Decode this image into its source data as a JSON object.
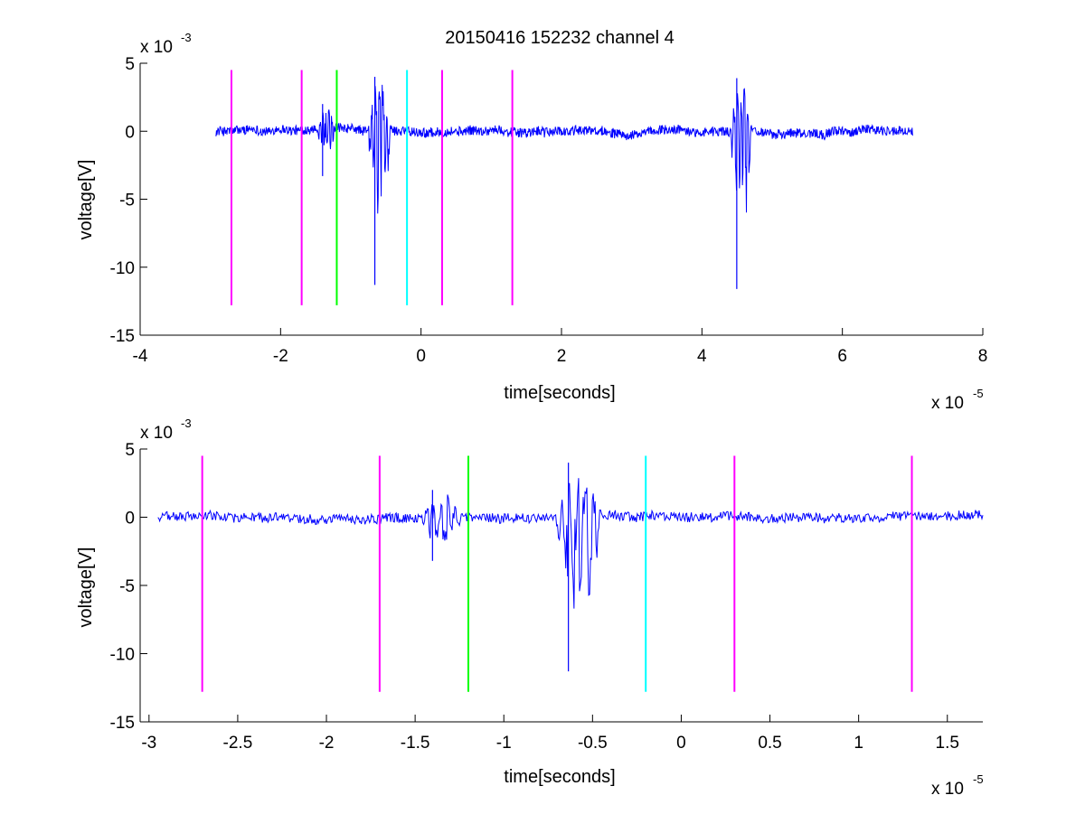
{
  "figure": {
    "title": "20150416 152232 channel 4",
    "background": "#ffffff"
  },
  "colors": {
    "signal": "#0000ff",
    "magenta": "#ff00ff",
    "green": "#00ff00",
    "cyan": "#00ffff",
    "axis": "#000000"
  },
  "chart_data": [
    {
      "type": "line",
      "title": "20150416 152232 channel 4",
      "xlabel": "time[seconds]",
      "ylabel": "voltage[V]",
      "x_exponent_label": "x 10",
      "x_exponent_power": "-5",
      "y_exponent_label": "x 10",
      "y_exponent_power": "-3",
      "xlim": [
        -4,
        8
      ],
      "ylim": [
        -15,
        5
      ],
      "xticks": [
        -4,
        -2,
        0,
        2,
        4,
        6,
        8
      ],
      "xtick_labels": [
        "-4",
        "-2",
        "0",
        "2",
        "4",
        "6",
        "8"
      ],
      "yticks": [
        -15,
        -10,
        -5,
        0,
        5
      ],
      "ytick_labels": [
        "-15",
        "-10",
        "-5",
        "0",
        "5"
      ],
      "grid": false,
      "series": [
        {
          "color": "#0000ff",
          "x_range": [
            -2.92,
            7.0
          ],
          "baseline": 0,
          "noise_amplitude": 0.35,
          "bursts": [
            {
              "x_start": -1.48,
              "x_end": -1.22,
              "min": -3.3,
              "max": 2.0
            },
            {
              "x_start": -0.76,
              "x_end": -0.42,
              "min": -11.3,
              "max": 4.0
            },
            {
              "x_start": 4.4,
              "x_end": 4.72,
              "min": -11.6,
              "max": 3.9
            }
          ]
        }
      ],
      "markers": [
        {
          "x": -2.7,
          "color": "#ff00ff",
          "y_from": -12.8,
          "y_to": 4.5
        },
        {
          "x": -1.7,
          "color": "#ff00ff",
          "y_from": -12.8,
          "y_to": 4.5
        },
        {
          "x": -1.2,
          "color": "#00ff00",
          "y_from": -12.8,
          "y_to": 4.5
        },
        {
          "x": -0.2,
          "color": "#00ffff",
          "y_from": -12.8,
          "y_to": 4.5
        },
        {
          "x": 0.3,
          "color": "#ff00ff",
          "y_from": -12.8,
          "y_to": 4.5
        },
        {
          "x": 1.3,
          "color": "#ff00ff",
          "y_from": -12.8,
          "y_to": 4.5
        }
      ]
    },
    {
      "type": "line",
      "title": "",
      "xlabel": "time[seconds]",
      "ylabel": "voltage[V]",
      "x_exponent_label": "x 10",
      "x_exponent_power": "-5",
      "y_exponent_label": "x 10",
      "y_exponent_power": "-3",
      "xlim": [
        -3.05,
        1.7
      ],
      "ylim": [
        -15,
        5
      ],
      "xticks": [
        -3,
        -2.5,
        -2,
        -1.5,
        -1,
        -0.5,
        0,
        0.5,
        1,
        1.5
      ],
      "xtick_labels": [
        "-3",
        "-2.5",
        "-2",
        "-1.5",
        "-1",
        "-0.5",
        "0",
        "0.5",
        "1",
        "1.5"
      ],
      "yticks": [
        -15,
        -10,
        -5,
        0,
        5
      ],
      "ytick_labels": [
        "-15",
        "-10",
        "-5",
        "0",
        "5"
      ],
      "grid": false,
      "series": [
        {
          "color": "#0000ff",
          "x_range": [
            -2.95,
            1.7
          ],
          "baseline": 0,
          "noise_amplitude": 0.35,
          "bursts": [
            {
              "x_start": -1.48,
              "x_end": -1.22,
              "min": -3.2,
              "max": 2.0
            },
            {
              "x_start": -0.72,
              "x_end": -0.44,
              "min": -11.3,
              "max": 4.0
            }
          ]
        }
      ],
      "markers": [
        {
          "x": -2.7,
          "color": "#ff00ff",
          "y_from": -12.8,
          "y_to": 4.5
        },
        {
          "x": -1.7,
          "color": "#ff00ff",
          "y_from": -12.8,
          "y_to": 4.5
        },
        {
          "x": -1.2,
          "color": "#00ff00",
          "y_from": -12.8,
          "y_to": 4.5
        },
        {
          "x": -0.2,
          "color": "#00ffff",
          "y_from": -12.8,
          "y_to": 4.5
        },
        {
          "x": 0.3,
          "color": "#ff00ff",
          "y_from": -12.8,
          "y_to": 4.5
        },
        {
          "x": 1.3,
          "color": "#ff00ff",
          "y_from": -12.8,
          "y_to": 4.5
        }
      ]
    }
  ]
}
